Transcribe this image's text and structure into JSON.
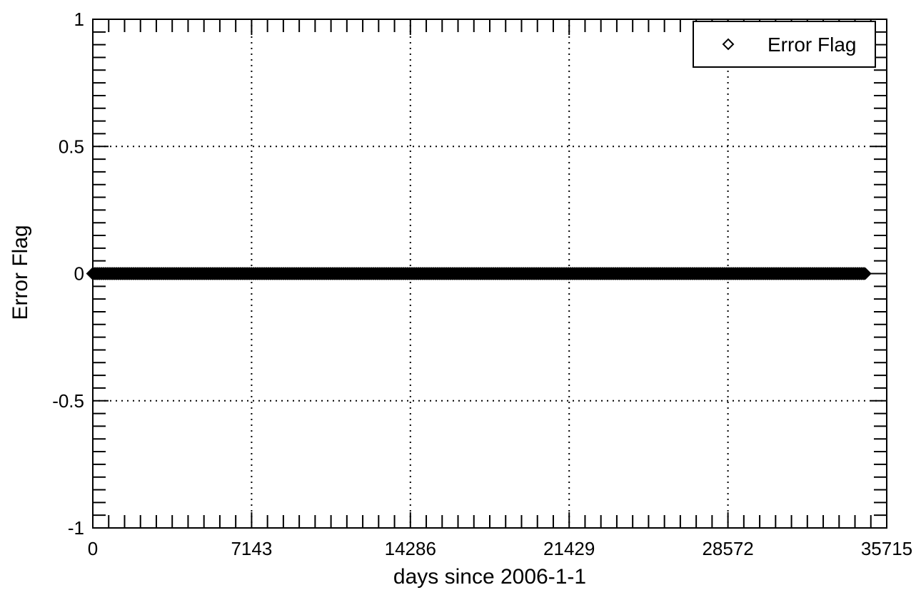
{
  "chart_data": {
    "type": "scatter",
    "title": "",
    "xlabel": "days since 2006-1-1",
    "ylabel": "Error Flag",
    "xlim": [
      0,
      35715
    ],
    "ylim": [
      -1,
      1
    ],
    "x_ticks": [
      0,
      7143,
      14286,
      21429,
      28572,
      35715
    ],
    "x_tick_labels": [
      "0",
      "7143",
      "14286",
      "21429",
      "28572",
      "35715"
    ],
    "y_ticks": [
      -1,
      -0.5,
      0,
      0.5,
      1
    ],
    "y_tick_labels": [
      "-1",
      "-0.5",
      "0",
      "0.5",
      "1"
    ],
    "grid": true,
    "legend_position": "top-right",
    "series": [
      {
        "name": "Error Flag",
        "marker": "diamond",
        "color": "#000000",
        "x_range": [
          0,
          35715
        ],
        "y_constant": 0
      }
    ]
  }
}
